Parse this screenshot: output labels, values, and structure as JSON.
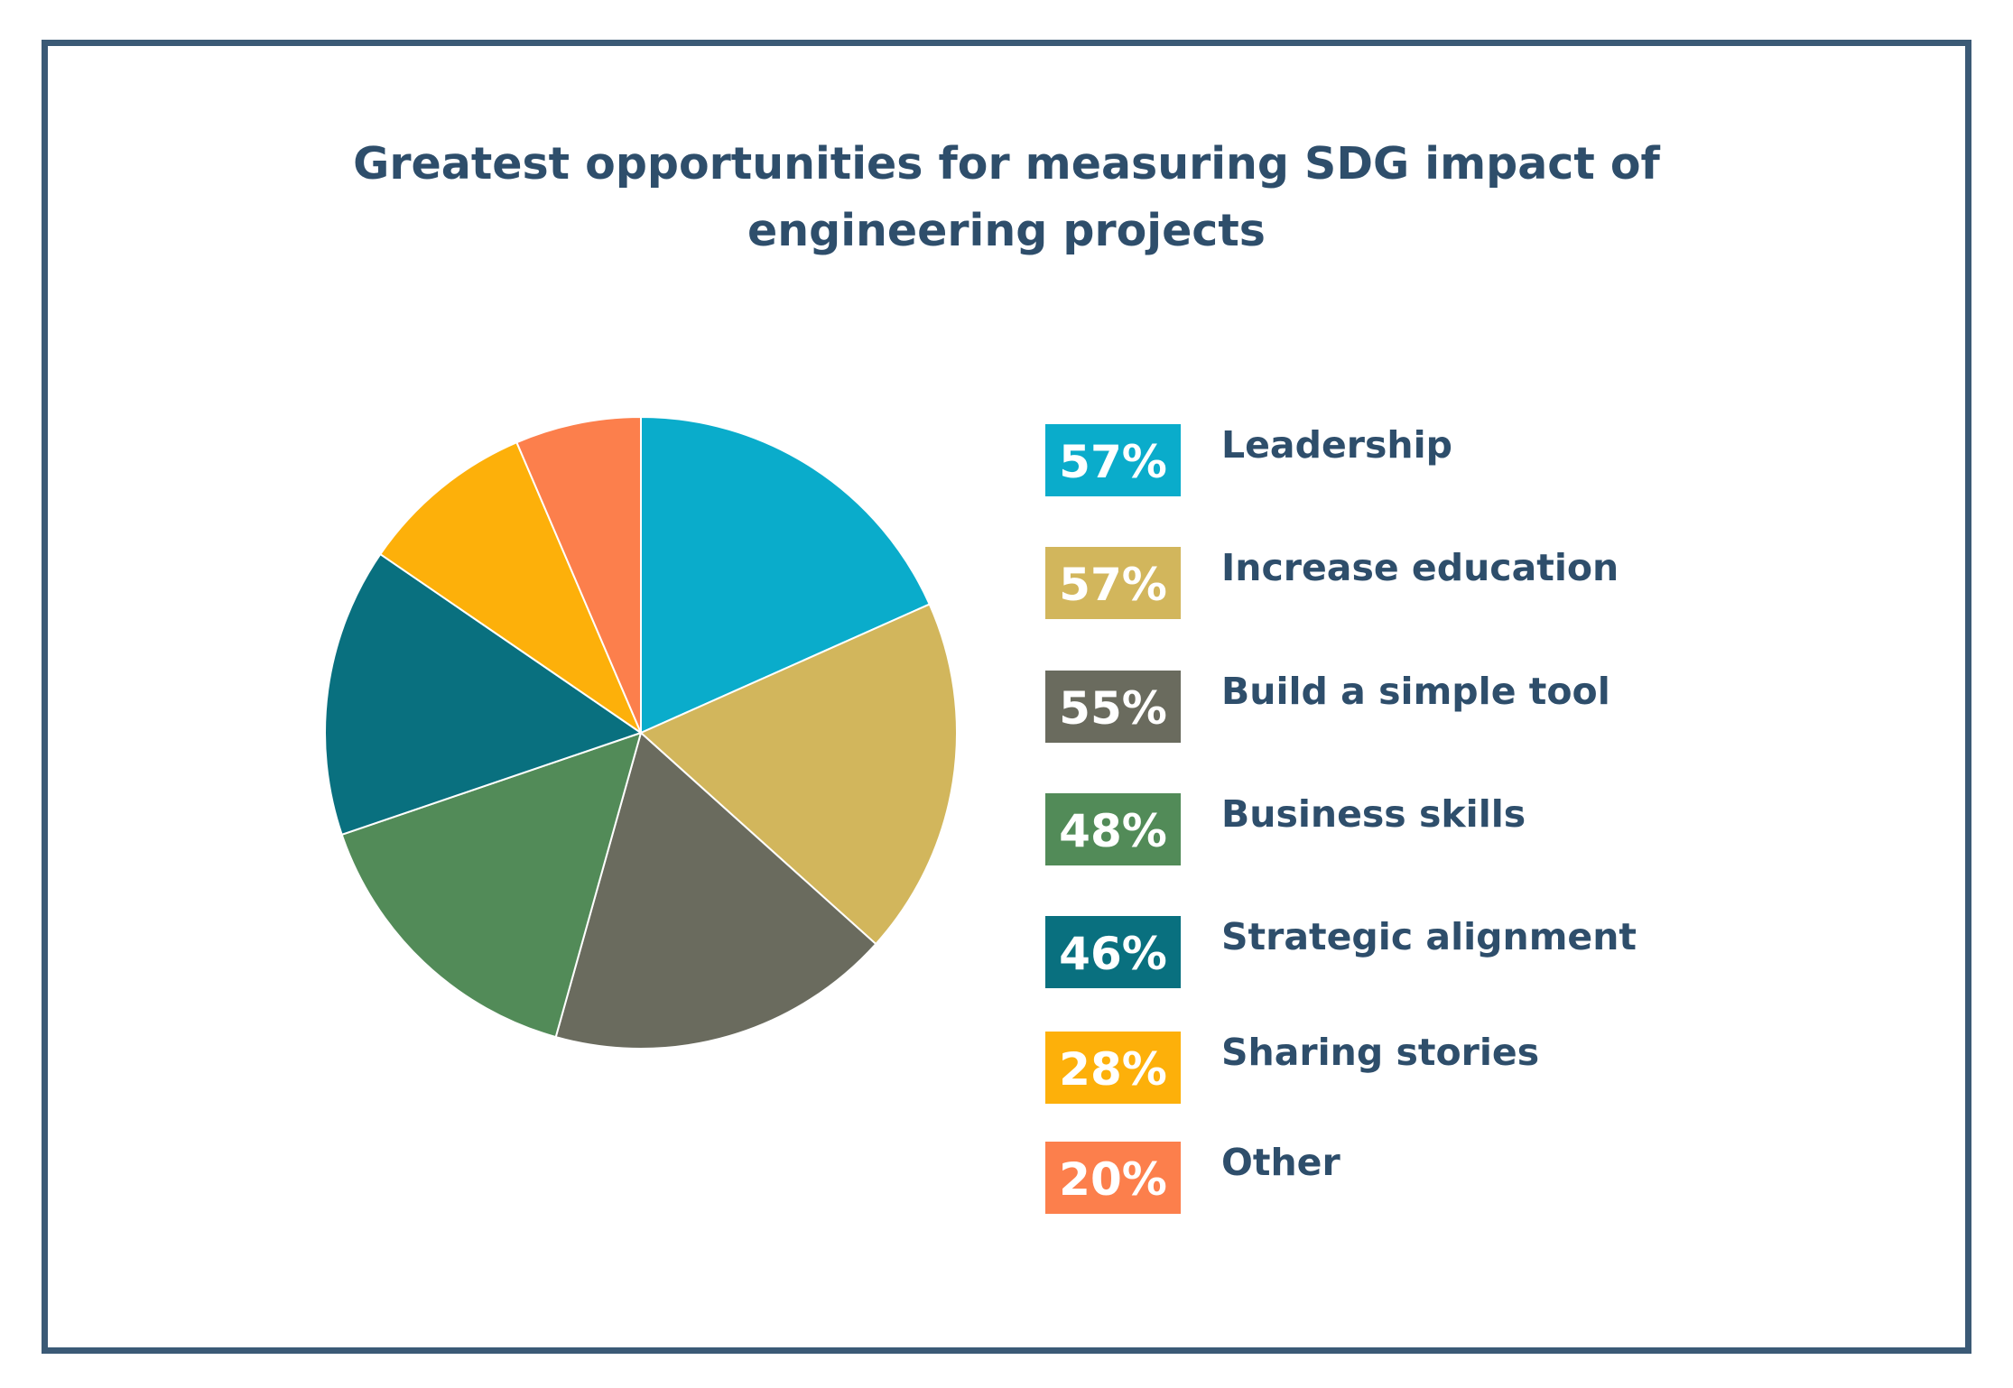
{
  "chart_data": {
    "type": "pie",
    "title": "Greatest opportunities for measuring SDG impact of engineering projects",
    "title_lines": [
      "Greatest opportunities for measuring SDG impact of",
      "engineering projects"
    ],
    "categories": [
      "Leadership",
      "Increase education",
      "Build a simple tool",
      "Business skills",
      "Strategic alignment",
      "Sharing stories",
      "Other"
    ],
    "values": [
      57,
      57,
      55,
      48,
      46,
      28,
      20
    ],
    "value_labels": [
      "57%",
      "57%",
      "55%",
      "48%",
      "46%",
      "28%",
      "20%"
    ],
    "colors": [
      "#0aaccb",
      "#d2b65c",
      "#6a6b5e",
      "#528b58",
      "#09707f",
      "#fdb00a",
      "#fc7f4c"
    ],
    "start_angle_deg": 0,
    "direction": "clockwise",
    "legend_position": "right"
  }
}
